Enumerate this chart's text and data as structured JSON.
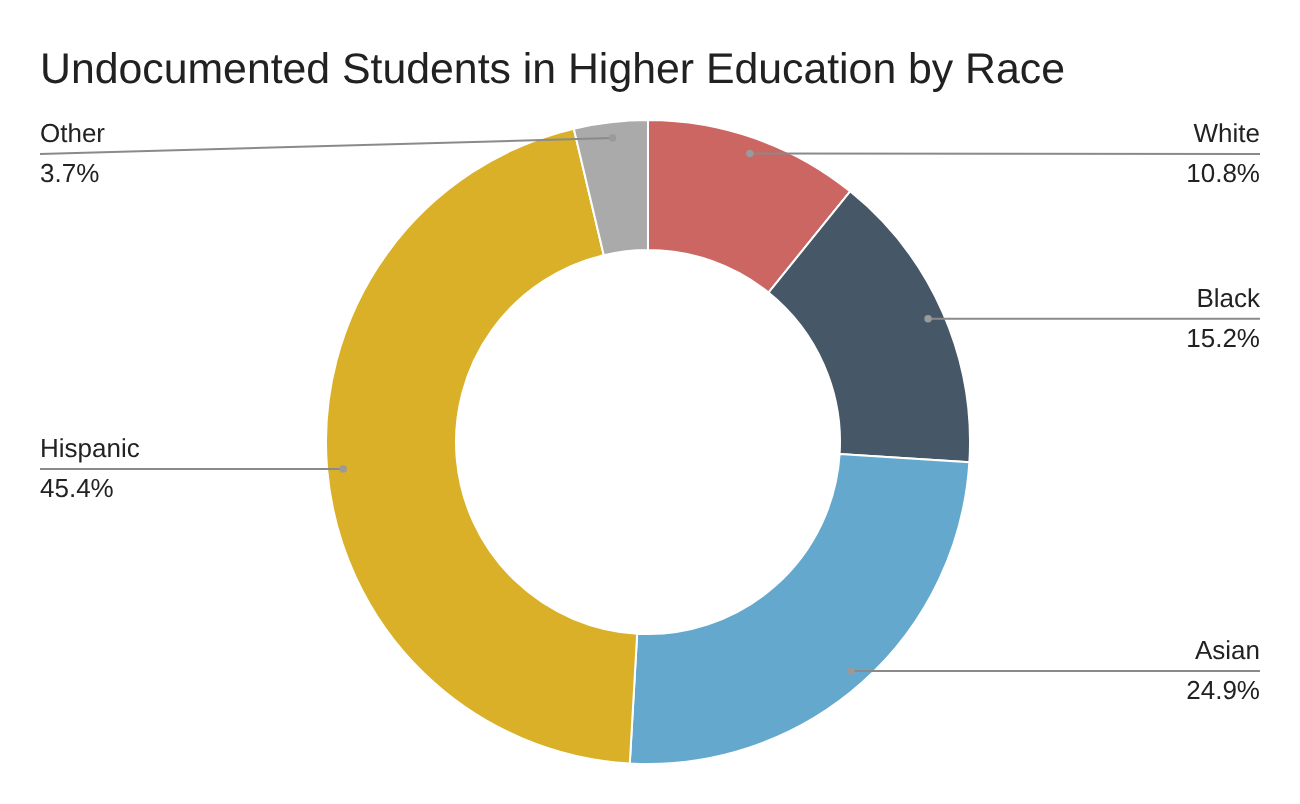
{
  "chart_data": {
    "type": "donut",
    "title": "Undocumented Students in Higher Education by Race",
    "categories": [
      "White",
      "Black",
      "Asian",
      "Hispanic",
      "Other"
    ],
    "values": [
      10.8,
      15.2,
      24.9,
      45.4,
      3.7
    ],
    "colors": [
      "#cc6662",
      "#465868",
      "#64a9cd",
      "#d9b027",
      "#aaaaaa"
    ],
    "value_labels": [
      "10.8%",
      "15.2%",
      "24.9%",
      "45.4%",
      "3.7%"
    ]
  }
}
